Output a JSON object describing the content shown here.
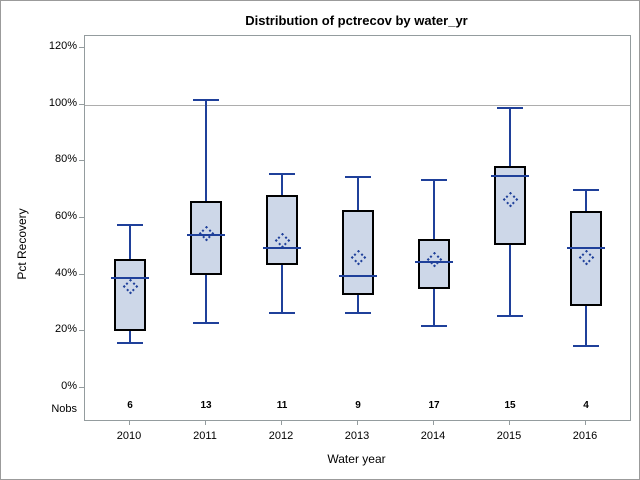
{
  "figure": {
    "title": "Distribution of pctrecov by water_yr",
    "x_axis_label": "Water year",
    "y_axis_label": "Pct Recovery",
    "nobs_label": "Nobs"
  },
  "chart_data": {
    "type": "boxplot",
    "title": "Distribution of pctrecov by water_yr",
    "xlabel": "Water year",
    "ylabel": "Pct Recovery",
    "categories": [
      "2010",
      "2011",
      "2012",
      "2013",
      "2014",
      "2015",
      "2016"
    ],
    "y_ticks": [
      "0%",
      "20%",
      "40%",
      "60%",
      "80%",
      "100%",
      "120%"
    ],
    "y_tick_values": [
      0,
      20,
      40,
      60,
      80,
      100,
      120
    ],
    "ylim": [
      0,
      120
    ],
    "y_unit": "percent",
    "reference_line_y": 100,
    "grid": "reference line at 100% only",
    "legend": "none",
    "nobs_row_label": "Nobs",
    "nobs": [
      "6",
      "13",
      "11",
      "9",
      "17",
      "15",
      "4"
    ],
    "series": [
      {
        "category": "2010",
        "whisker_low": 16,
        "q1": 20,
        "median": 39,
        "mean": 36,
        "q3": 45.5,
        "whisker_high": 57.5,
        "nobs": 6
      },
      {
        "category": "2011",
        "whisker_low": 23,
        "q1": 40,
        "median": 54,
        "mean": 54.5,
        "q3": 66,
        "whisker_high": 101.5,
        "nobs": 13
      },
      {
        "category": "2012",
        "whisker_low": 26.5,
        "q1": 43.5,
        "median": 49.5,
        "mean": 52,
        "q3": 68,
        "whisker_high": 75.5,
        "nobs": 11
      },
      {
        "category": "2013",
        "whisker_low": 26.5,
        "q1": 33,
        "median": 39.5,
        "mean": 46,
        "q3": 63,
        "whisker_high": 74.5,
        "nobs": 9
      },
      {
        "category": "2014",
        "whisker_low": 22,
        "q1": 35,
        "median": 44.5,
        "mean": 45.5,
        "q3": 52.5,
        "whisker_high": 73.5,
        "nobs": 17
      },
      {
        "category": "2015",
        "whisker_low": 25.5,
        "q1": 50.5,
        "median": 75,
        "mean": 66.5,
        "q3": 78.5,
        "whisker_high": 99,
        "nobs": 15
      },
      {
        "category": "2016",
        "whisker_low": 15,
        "q1": 29,
        "median": 49.5,
        "mean": 46,
        "q3": 62.5,
        "whisker_high": 70,
        "nobs": 4
      }
    ]
  },
  "colors": {
    "box_fill": "#cdd7e8",
    "box_border": "#000000",
    "line_blue": "#1f409a",
    "reference_line": "#adadad",
    "frame_gray": "#949c9e",
    "text": "#000000"
  }
}
